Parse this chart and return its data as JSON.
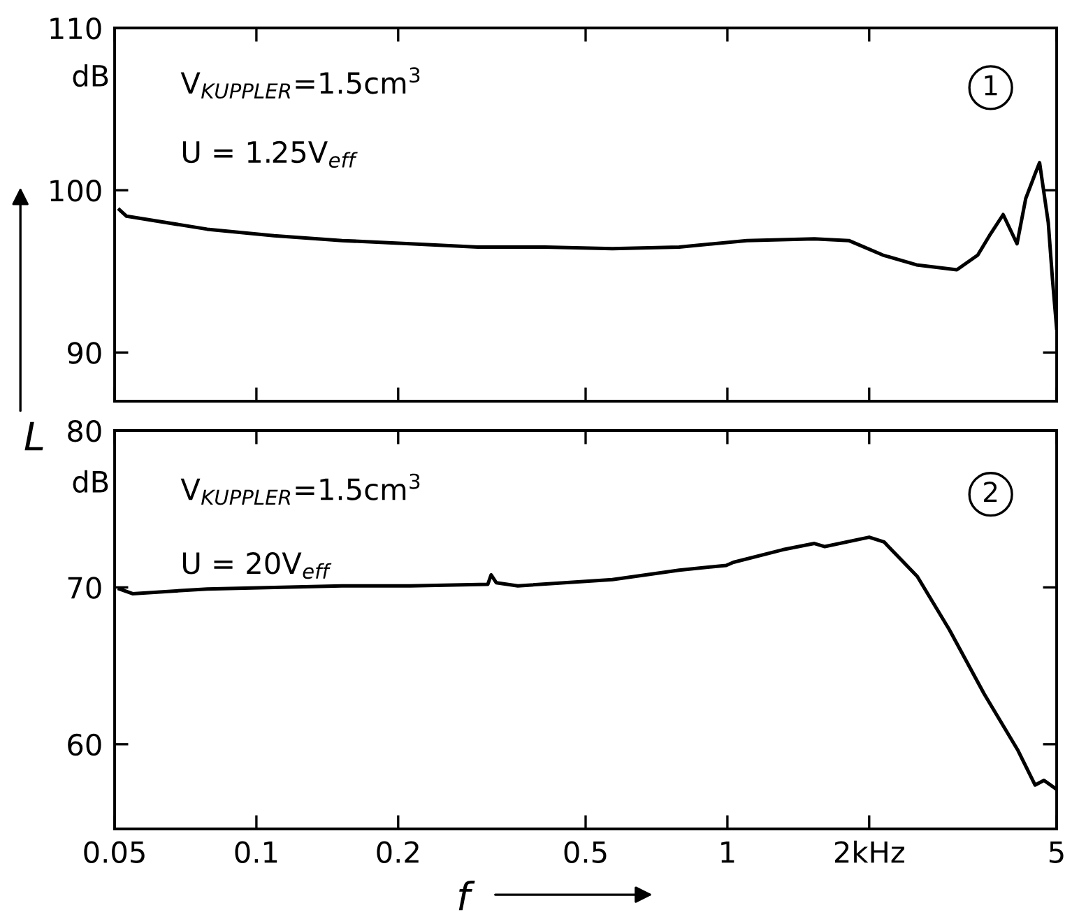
{
  "chart_data": [
    {
      "type": "line",
      "log": "x",
      "xlim": [
        0.05,
        5
      ],
      "xticks": [
        {
          "value": 0.05,
          "label": null
        },
        {
          "value": 0.1,
          "label": null
        },
        {
          "value": 0.2,
          "label": null
        },
        {
          "value": 0.5,
          "label": null
        },
        {
          "value": 1,
          "label": null
        },
        {
          "value": 2,
          "label": null
        },
        {
          "value": 5,
          "label": null
        }
      ],
      "ylim": [
        87,
        110
      ],
      "yticks": [
        90,
        100,
        110
      ],
      "tick_labels": "y",
      "grid": false,
      "annotations": [
        "dB",
        "V$_{KUPPLER}$=1.5cm$^{3}$",
        "U = 1.25V$_{eff}$",
        "1"
      ],
      "series": [
        {
          "color": "#000000",
          "x": [
            0.0512,
            0.053,
            0.0786,
            0.109,
            0.152,
            0.212,
            0.295,
            0.41,
            0.57,
            0.79,
            1.1,
            1.53,
            1.81,
            2.14,
            2.52,
            3.07,
            3.4,
            3.6,
            3.85,
            4.12,
            4.3,
            4.5,
            4.6,
            4.8,
            4.9,
            5.0
          ],
          "values": [
            98.8,
            98.4,
            97.6,
            97.2,
            96.9,
            96.7,
            96.5,
            96.5,
            96.4,
            96.5,
            96.9,
            97.0,
            96.9,
            96.0,
            95.4,
            95.1,
            96.0,
            97.2,
            98.5,
            96.7,
            99.5,
            101.0,
            101.7,
            98.0,
            94.5,
            91.5
          ]
        }
      ]
    },
    {
      "type": "line",
      "log": "x",
      "xlim": [
        0.05,
        5
      ],
      "xticks": [
        0.05,
        0.1,
        0.2,
        0.5,
        1,
        {
          "value": 2,
          "label": "2kHz"
        },
        5
      ],
      "ylim": [
        54.6,
        80
      ],
      "yticks": [
        60,
        70,
        80
      ],
      "grid": false,
      "xlabel": "f",
      "ylabel": "L",
      "annotations": [
        "dB",
        "V$_{KUPPLER}$=1.5cm$^{3}$",
        "U = 20V$_{eff}$",
        "2"
      ],
      "series": [
        {
          "color": "#000000",
          "x": [
            0.0512,
            0.0546,
            0.0786,
            0.109,
            0.152,
            0.212,
            0.31,
            0.315,
            0.323,
            0.359,
            0.57,
            0.79,
            0.994,
            1.03,
            1.31,
            1.53,
            1.61,
            2.0,
            2.15,
            2.53,
            2.96,
            3.51,
            4.14,
            4.5,
            4.7,
            4.96
          ],
          "values": [
            69.9,
            69.6,
            69.9,
            70.0,
            70.1,
            70.1,
            70.2,
            70.8,
            70.3,
            70.1,
            70.5,
            71.1,
            71.4,
            71.6,
            72.4,
            72.8,
            72.6,
            73.2,
            72.9,
            70.7,
            67.3,
            63.2,
            59.6,
            57.4,
            57.7,
            57.2
          ]
        }
      ]
    }
  ]
}
